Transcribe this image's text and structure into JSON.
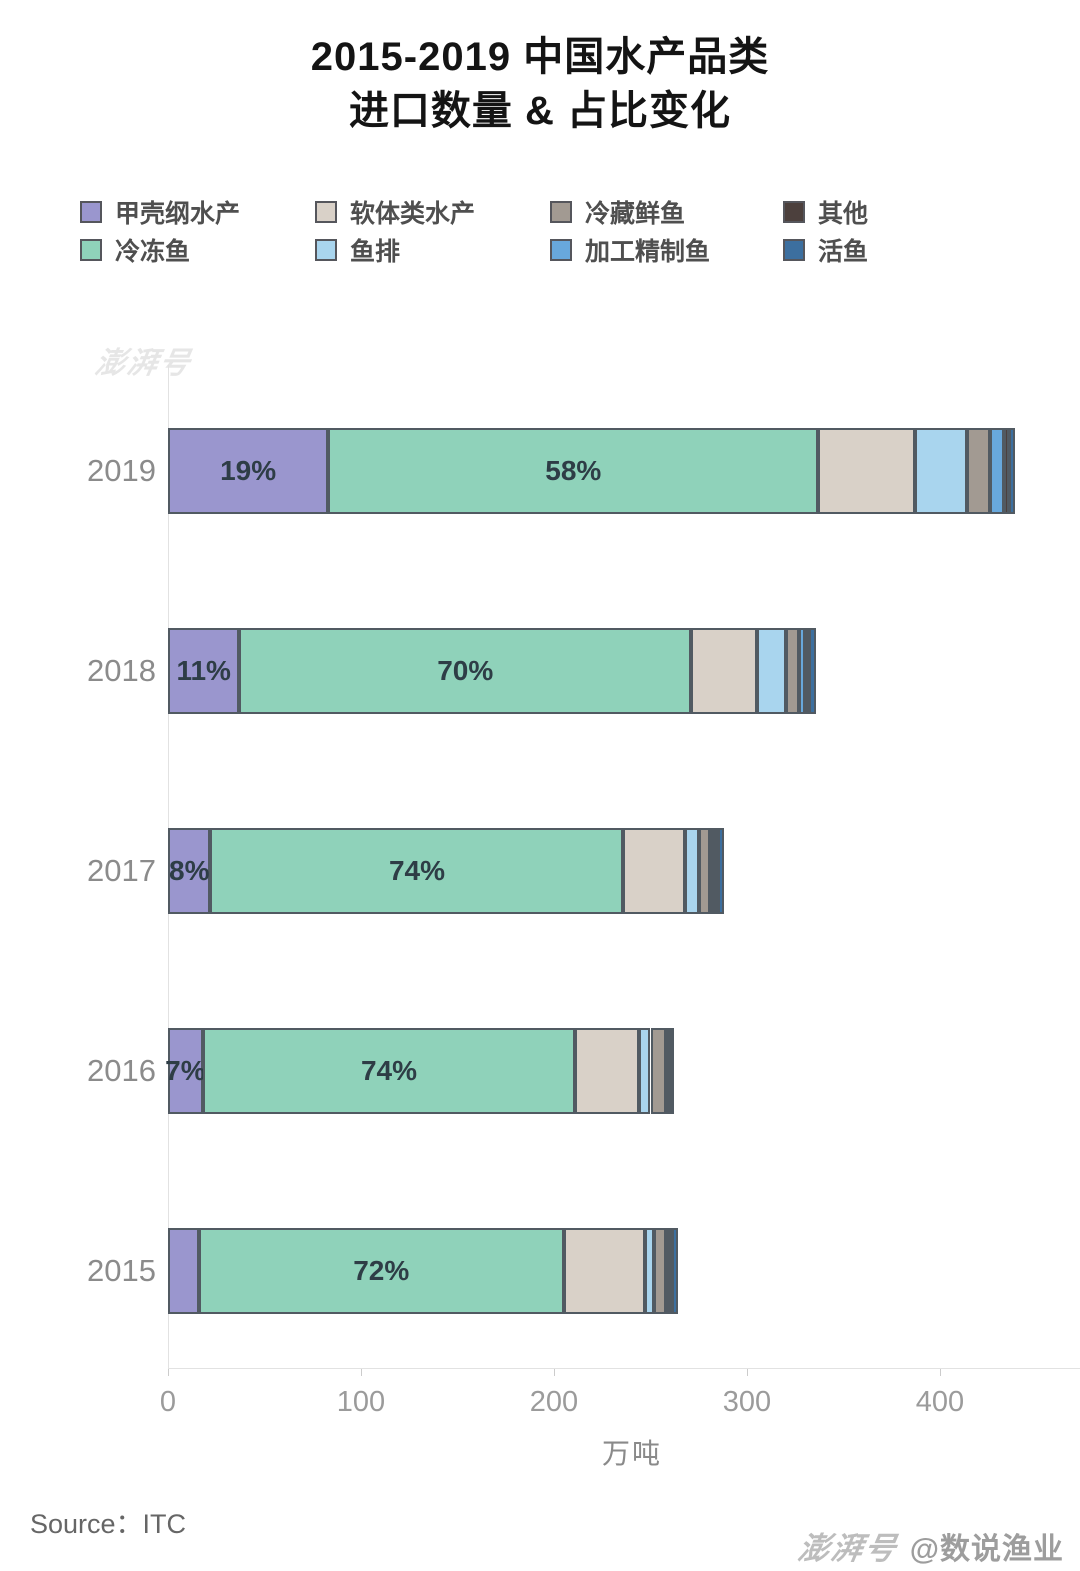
{
  "title": {
    "line1": "2015-2019 中国水产品类",
    "line2": "进口数量 & 占比变化"
  },
  "legend": [
    {
      "label": "甲壳纲水产",
      "color": "#9a96ce"
    },
    {
      "label": "软体类水产",
      "color": "#d9d1c8"
    },
    {
      "label": "冷藏鲜鱼",
      "color": "#a29a92"
    },
    {
      "label": "其他",
      "color": "#4c403d"
    },
    {
      "label": "冷冻鱼",
      "color": "#8fd2ba"
    },
    {
      "label": "鱼排",
      "color": "#a9d5ee"
    },
    {
      "label": "加工精制鱼",
      "color": "#68a8dc"
    },
    {
      "label": "活鱼",
      "color": "#3c6f9f"
    }
  ],
  "chart_data": {
    "type": "bar",
    "orientation": "horizontal",
    "stacked": true,
    "unit": "万吨",
    "categories": [
      "2019",
      "2018",
      "2017",
      "2016",
      "2015"
    ],
    "totals": [
      439,
      336,
      288,
      262,
      264
    ],
    "series": [
      {
        "name": "甲壳纲水产",
        "color": "#9a96ce",
        "values": [
          83,
          37,
          22,
          18,
          16
        ],
        "labels": [
          "19%",
          "11%",
          "8%",
          "7%",
          ""
        ]
      },
      {
        "name": "冷冻鱼",
        "color": "#8fd2ba",
        "values": [
          254,
          234,
          214,
          193,
          189
        ],
        "labels": [
          "58%",
          "70%",
          "74%",
          "74%",
          "72%"
        ]
      },
      {
        "name": "软体类水产",
        "color": "#d9d1c8",
        "values": [
          50,
          34,
          32,
          33,
          42
        ],
        "labels": [
          "",
          "",
          "",
          "",
          ""
        ]
      },
      {
        "name": "鱼排",
        "color": "#a9d5ee",
        "values": [
          27,
          15,
          7,
          6,
          5
        ],
        "labels": [
          "",
          "",
          "",
          "",
          ""
        ]
      },
      {
        "name": "冷藏鲜鱼",
        "color": "#a29a92",
        "values": [
          12,
          7,
          6,
          8,
          6
        ],
        "labels": [
          "",
          "",
          "",
          "",
          ""
        ]
      },
      {
        "name": "加工精制鱼",
        "color": "#68a8dc",
        "values": [
          7,
          3,
          2,
          1,
          1
        ],
        "labels": [
          "",
          "",
          "",
          "",
          ""
        ]
      },
      {
        "name": "其他",
        "color": "#4c403d",
        "values": [
          3,
          2,
          2,
          1,
          2
        ],
        "labels": [
          "",
          "",
          "",
          "",
          ""
        ]
      },
      {
        "name": "活鱼",
        "color": "#3c6f9f",
        "values": [
          3,
          4,
          3,
          2,
          3
        ],
        "labels": [
          "",
          "",
          "",
          "",
          ""
        ]
      }
    ],
    "xlabel": "万吨",
    "x_ticks": [
      "0",
      "100",
      "200",
      "300",
      "400"
    ],
    "x_tick_values": [
      0,
      100,
      200,
      300,
      400
    ],
    "xlim": [
      0,
      480
    ],
    "legend_position": "top",
    "grid": false
  },
  "footer": {
    "source": "Source：ITC",
    "watermark_logo": "澎湃号",
    "watermark_handle": "@数说渔业"
  },
  "watermark_faint": "澎湃号",
  "colors": {
    "segment_border": "#515a62",
    "axis_line": "#e2e2e2",
    "tick_text": "#9b9b9b",
    "year_text": "#8b8b8b",
    "bar_label_text": "#2e3d46"
  }
}
